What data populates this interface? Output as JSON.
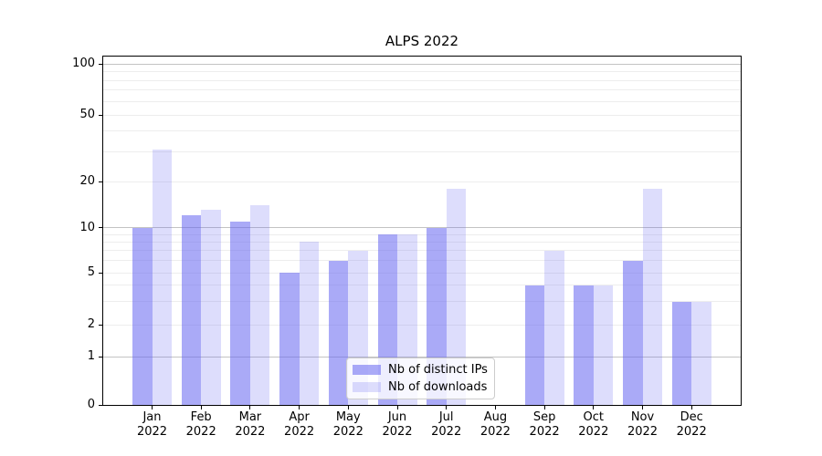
{
  "chart_data": {
    "type": "bar",
    "title": "ALPS 2022",
    "categories": [
      "Jan 2022",
      "Feb 2022",
      "Mar 2022",
      "Apr 2022",
      "May 2022",
      "Jun 2022",
      "Jul 2022",
      "Aug 2022",
      "Sep 2022",
      "Oct 2022",
      "Nov 2022",
      "Dec 2022"
    ],
    "series": [
      {
        "name": "Nb of distinct IPs",
        "key": "distinct-ips",
        "values": [
          10,
          12,
          11,
          5,
          6,
          9,
          10,
          0,
          4,
          4,
          6,
          3
        ],
        "color": "#aaabf7",
        "css_color": "rgba(100,100,240,0.55)"
      },
      {
        "name": "Nb of downloads",
        "key": "downloads",
        "values": [
          31,
          13,
          14,
          8,
          7,
          9,
          18,
          0,
          7,
          4,
          18,
          3
        ],
        "color": "#dcddfb",
        "css_color": "rgba(100,100,240,0.22)"
      }
    ],
    "xlabel": "",
    "ylabel": "",
    "yaxis": {
      "scale": "log-like",
      "ylim": [
        0,
        100
      ],
      "ticks": [
        0,
        1,
        2,
        5,
        10,
        20,
        50,
        100
      ],
      "major_gridlines": [
        1,
        10,
        100
      ],
      "minor_gridlines": [
        2,
        3,
        4,
        5,
        6,
        7,
        8,
        9,
        20,
        30,
        40,
        50,
        60,
        70,
        80,
        90
      ]
    },
    "legend": {
      "position": "lower center",
      "entries": [
        "Nb of distinct IPs",
        "Nb of downloads"
      ]
    },
    "grid": true
  },
  "colors": {
    "bar_distinct_ips": "#aaabf7",
    "bar_downloads": "#dcddfb",
    "grid_major": "#c3c3c3",
    "grid_minor": "#ededed",
    "spine": "#000000",
    "legend_border": "#cccccc"
  }
}
